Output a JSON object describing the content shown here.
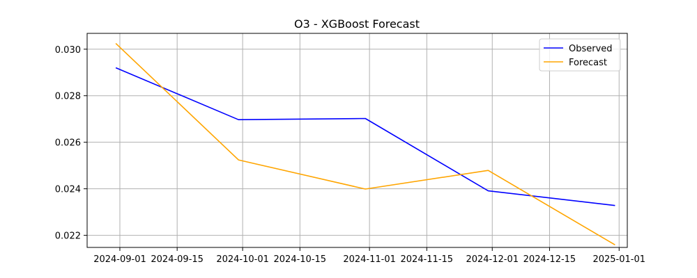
{
  "chart_data": {
    "type": "line",
    "title": "O3 - XGBoost Forecast",
    "xlabel": "",
    "ylabel": "",
    "x_type": "date",
    "xlim": [
      "2024-08-24",
      "2025-01-03"
    ],
    "ylim": [
      0.02148,
      0.03068
    ],
    "x_ticks": [
      "2024-09-01",
      "2024-09-15",
      "2024-10-01",
      "2024-10-15",
      "2024-11-01",
      "2024-11-15",
      "2024-12-01",
      "2024-12-15",
      "2025-01-01"
    ],
    "x_tick_labels": [
      "2024-09-01",
      "2024-09-15",
      "2024-10-01",
      "2024-10-15",
      "2024-11-01",
      "2024-11-15",
      "2024-12-01",
      "2024-12-15",
      "2025-01-01"
    ],
    "y_ticks": [
      0.022,
      0.024,
      0.026,
      0.028,
      0.03
    ],
    "y_tick_labels": [
      "0.022",
      "0.024",
      "0.026",
      "0.028",
      "0.030"
    ],
    "grid": true,
    "legend_position": "top-right",
    "series": [
      {
        "name": "Observed",
        "color": "#0000ff",
        "x": [
          "2024-08-31",
          "2024-09-30",
          "2024-10-31",
          "2024-11-30",
          "2024-12-31"
        ],
        "y": [
          0.0292,
          0.02697,
          0.02702,
          0.02391,
          0.02328
        ]
      },
      {
        "name": "Forecast",
        "color": "#ffa500",
        "x": [
          "2024-08-31",
          "2024-09-30",
          "2024-10-31",
          "2024-11-30",
          "2024-12-31"
        ],
        "y": [
          0.03025,
          0.02524,
          0.02399,
          0.02479,
          0.02159
        ]
      }
    ]
  }
}
